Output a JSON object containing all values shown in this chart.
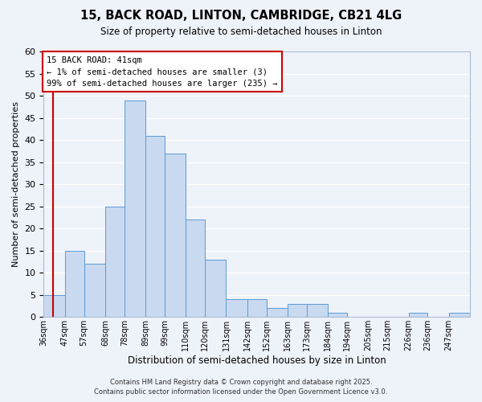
{
  "title": "15, BACK ROAD, LINTON, CAMBRIDGE, CB21 4LG",
  "subtitle": "Size of property relative to semi-detached houses in Linton",
  "xlabel": "Distribution of semi-detached houses by size in Linton",
  "ylabel": "Number of semi-detached properties",
  "bin_labels": [
    "36sqm",
    "47sqm",
    "57sqm",
    "68sqm",
    "78sqm",
    "89sqm",
    "99sqm",
    "110sqm",
    "120sqm",
    "131sqm",
    "142sqm",
    "152sqm",
    "163sqm",
    "173sqm",
    "184sqm",
    "194sqm",
    "205sqm",
    "215sqm",
    "226sqm",
    "236sqm",
    "247sqm"
  ],
  "bin_edges": [
    36,
    47,
    57,
    68,
    78,
    89,
    99,
    110,
    120,
    131,
    142,
    152,
    163,
    173,
    184,
    194,
    205,
    215,
    226,
    236,
    247,
    258
  ],
  "bar_heights": [
    5,
    15,
    12,
    25,
    49,
    41,
    37,
    22,
    13,
    4,
    4,
    2,
    3,
    3,
    1,
    0,
    0,
    0,
    1,
    0,
    1
  ],
  "bar_color": "#c8d9f0",
  "bar_edge_color": "#5b9bd5",
  "bg_color": "#eef2f9",
  "grid_color": "#ffffff",
  "property_value": 41,
  "vline_color": "#cc0000",
  "annotation_text": "15 BACK ROAD: 41sqm\n← 1% of semi-detached houses are smaller (3)\n99% of semi-detached houses are larger (235) →",
  "annotation_box_color": "#ffffff",
  "annotation_box_edge_color": "#cc0000",
  "ylim": [
    0,
    60
  ],
  "yticks": [
    0,
    5,
    10,
    15,
    20,
    25,
    30,
    35,
    40,
    45,
    50,
    55,
    60
  ],
  "footer_line1": "Contains HM Land Registry data © Crown copyright and database right 2025.",
  "footer_line2": "Contains public sector information licensed under the Open Government Licence v3.0."
}
